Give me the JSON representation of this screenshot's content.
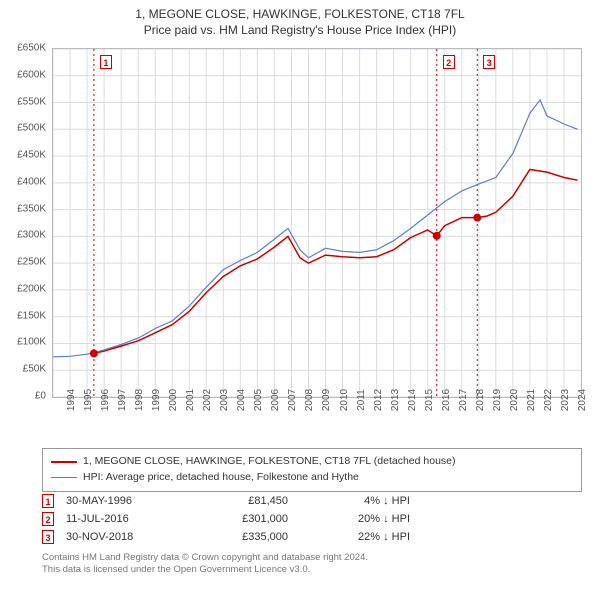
{
  "title": {
    "line1": "1, MEGONE CLOSE, HAWKINGE, FOLKESTONE, CT18 7FL",
    "line2": "Price paid vs. HM Land Registry's House Price Index (HPI)"
  },
  "chart": {
    "type": "line",
    "background_color": "#ffffff",
    "border_color": "#b9b9c4",
    "grid_color": "#dcdcdc",
    "x": {
      "min": 1994,
      "max": 2025,
      "ticks": [
        1994,
        1995,
        1996,
        1997,
        1998,
        1999,
        2000,
        2001,
        2002,
        2003,
        2004,
        2005,
        2006,
        2007,
        2008,
        2009,
        2010,
        2011,
        2012,
        2013,
        2014,
        2015,
        2016,
        2017,
        2018,
        2019,
        2020,
        2021,
        2022,
        2023,
        2024
      ],
      "tick_fontsize": 10,
      "tick_rotation": -90
    },
    "y": {
      "min": 0,
      "max": 650000,
      "ticks": [
        0,
        50000,
        100000,
        150000,
        200000,
        250000,
        300000,
        350000,
        400000,
        450000,
        500000,
        550000,
        600000,
        650000
      ],
      "tick_labels": [
        "£0",
        "£50K",
        "£100K",
        "£150K",
        "£200K",
        "£250K",
        "£300K",
        "£350K",
        "£400K",
        "£450K",
        "£500K",
        "£550K",
        "£600K",
        "£650K"
      ],
      "tick_fontsize": 10
    },
    "series": [
      {
        "name": "property_price",
        "color": "#cc0000",
        "line_width": 1.5,
        "points": [
          [
            1996.4,
            81450
          ],
          [
            1997,
            86000
          ],
          [
            1998,
            95000
          ],
          [
            1999,
            105000
          ],
          [
            2000,
            120000
          ],
          [
            2001,
            135000
          ],
          [
            2002,
            160000
          ],
          [
            2003,
            195000
          ],
          [
            2004,
            225000
          ],
          [
            2005,
            245000
          ],
          [
            2006,
            258000
          ],
          [
            2007,
            280000
          ],
          [
            2007.8,
            300000
          ],
          [
            2008.5,
            260000
          ],
          [
            2009,
            250000
          ],
          [
            2010,
            265000
          ],
          [
            2011,
            262000
          ],
          [
            2012,
            260000
          ],
          [
            2013,
            262000
          ],
          [
            2014,
            275000
          ],
          [
            2015,
            298000
          ],
          [
            2016,
            312000
          ],
          [
            2016.53,
            301000
          ],
          [
            2017,
            320000
          ],
          [
            2018,
            335000
          ],
          [
            2018.91,
            335000
          ],
          [
            2019.5,
            338000
          ],
          [
            2020,
            345000
          ],
          [
            2021,
            375000
          ],
          [
            2022,
            425000
          ],
          [
            2023,
            420000
          ],
          [
            2024,
            410000
          ],
          [
            2024.8,
            405000
          ]
        ]
      },
      {
        "name": "hpi",
        "color": "#5b7fc7",
        "line_width": 1.2,
        "points": [
          [
            1994,
            75000
          ],
          [
            1995,
            76000
          ],
          [
            1996,
            80000
          ],
          [
            1997,
            88000
          ],
          [
            1998,
            98000
          ],
          [
            1999,
            110000
          ],
          [
            2000,
            128000
          ],
          [
            2001,
            142000
          ],
          [
            2002,
            170000
          ],
          [
            2003,
            205000
          ],
          [
            2004,
            238000
          ],
          [
            2005,
            255000
          ],
          [
            2006,
            270000
          ],
          [
            2007,
            295000
          ],
          [
            2007.8,
            315000
          ],
          [
            2008.5,
            275000
          ],
          [
            2009,
            260000
          ],
          [
            2010,
            278000
          ],
          [
            2011,
            272000
          ],
          [
            2012,
            270000
          ],
          [
            2013,
            275000
          ],
          [
            2014,
            292000
          ],
          [
            2015,
            315000
          ],
          [
            2016,
            340000
          ],
          [
            2017,
            365000
          ],
          [
            2018,
            385000
          ],
          [
            2019,
            398000
          ],
          [
            2020,
            410000
          ],
          [
            2021,
            455000
          ],
          [
            2022,
            530000
          ],
          [
            2022.6,
            555000
          ],
          [
            2023,
            525000
          ],
          [
            2024,
            510000
          ],
          [
            2024.8,
            500000
          ]
        ]
      }
    ],
    "sale_markers": [
      {
        "n": "1",
        "x": 1996.4,
        "y": 81450,
        "line_color": "#cc0000"
      },
      {
        "n": "2",
        "x": 2016.53,
        "y": 301000,
        "line_color": "#cc0000"
      },
      {
        "n": "3",
        "x": 2018.91,
        "y": 335000,
        "line_color": "#cc0000"
      }
    ],
    "marker_dot_color": "#cc0000",
    "marker_dot_radius": 4,
    "marker_box_border": "#cc0000",
    "marker_box_text_color": "#cc0000",
    "marker_dash": "2,3"
  },
  "legend": {
    "items": [
      {
        "color": "#cc0000",
        "width": 2,
        "label": "1, MEGONE CLOSE, HAWKINGE, FOLKESTONE, CT18 7FL (detached house)"
      },
      {
        "color": "#5b7fc7",
        "width": 1.2,
        "label": "HPI: Average price, detached house, Folkestone and Hythe"
      }
    ]
  },
  "sales": [
    {
      "n": "1",
      "date": "30-MAY-1996",
      "price": "£81,450",
      "delta": "4% ↓ HPI"
    },
    {
      "n": "2",
      "date": "11-JUL-2016",
      "price": "£301,000",
      "delta": "20% ↓ HPI"
    },
    {
      "n": "3",
      "date": "30-NOV-2018",
      "price": "£335,000",
      "delta": "22% ↓ HPI"
    }
  ],
  "footer": {
    "line1": "Contains HM Land Registry data © Crown copyright and database right 2024.",
    "line2": "This data is licensed under the Open Government Licence v3.0."
  }
}
